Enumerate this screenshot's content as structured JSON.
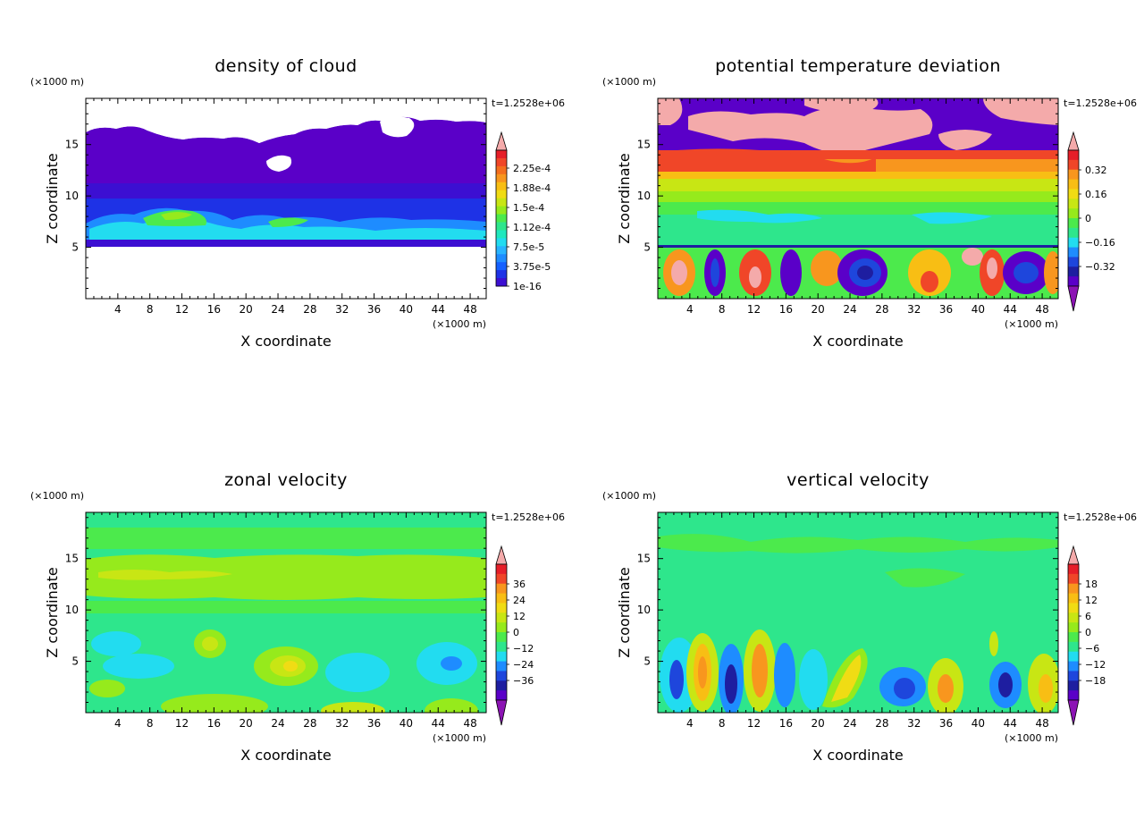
{
  "chart_data": [
    {
      "type": "heatmap",
      "title": "density of cloud",
      "xlabel": "X coordinate",
      "ylabel": "Z coordinate",
      "x_unit": "(×1000 m)",
      "y_unit": "(×1000 m)",
      "time_label": "t=1.2528e+06",
      "xlim": [
        0,
        50
      ],
      "ylim": [
        0,
        19.5
      ],
      "x_ticks": [
        "4",
        "8",
        "12",
        "16",
        "20",
        "24",
        "28",
        "32",
        "36",
        "40",
        "44",
        "48"
      ],
      "y_ticks": [
        "5",
        "10",
        "15"
      ],
      "colorbar": {
        "labels": [
          "2.25e-4",
          "1.88e-4",
          "1.5e-4",
          "1.12e-4",
          "7.5e-5",
          "3.75e-5",
          "1e-16"
        ],
        "colors": [
          "#5a00c8",
          "#3c0fd2",
          "#1e32e6",
          "#1460ff",
          "#1e8cff",
          "#28b4ff",
          "#22dcf0",
          "#20e8be",
          "#2ee68c",
          "#4cea4c",
          "#96ea1c",
          "#c8e614",
          "#f0dc14",
          "#f8be14",
          "#f8961e",
          "#f46e1e",
          "#f04628",
          "#e61e28",
          "#f4aaaa"
        ]
      }
    },
    {
      "type": "heatmap",
      "title": "potential temperature deviation",
      "xlabel": "X coordinate",
      "ylabel": "Z coordinate",
      "x_unit": "(×1000 m)",
      "y_unit": "(×1000 m)",
      "time_label": "t=1.2528e+06",
      "xlim": [
        0,
        50
      ],
      "ylim": [
        0,
        19.5
      ],
      "x_ticks": [
        "4",
        "8",
        "12",
        "16",
        "20",
        "24",
        "28",
        "32",
        "36",
        "40",
        "44",
        "48"
      ],
      "y_ticks": [
        "5",
        "10",
        "15"
      ],
      "colorbar": {
        "labels": [
          "0.32",
          "0.16",
          "0",
          "−0.16",
          "−0.32"
        ],
        "colors": [
          "#8c14b4",
          "#5a00c8",
          "#1e1ea0",
          "#1e46dc",
          "#1e8cff",
          "#22dcf0",
          "#2ee68c",
          "#4cea4c",
          "#96ea1c",
          "#c8e614",
          "#f0dc14",
          "#f8be14",
          "#f8961e",
          "#f04628",
          "#e61e28",
          "#f4aaaa"
        ]
      }
    },
    {
      "type": "heatmap",
      "title": "zonal velocity",
      "xlabel": "X coordinate",
      "ylabel": "Z coordinate",
      "x_unit": "(×1000 m)",
      "y_unit": "(×1000 m)",
      "time_label": "t=1.2528e+06",
      "xlim": [
        0,
        50
      ],
      "ylim": [
        0,
        19.5
      ],
      "x_ticks": [
        "4",
        "8",
        "12",
        "16",
        "20",
        "24",
        "28",
        "32",
        "36",
        "40",
        "44",
        "48"
      ],
      "y_ticks": [
        "5",
        "10",
        "15"
      ],
      "colorbar": {
        "labels": [
          "36",
          "24",
          "12",
          "0",
          "−12",
          "−24",
          "−36"
        ],
        "colors": [
          "#8c14b4",
          "#5a00c8",
          "#1e1ea0",
          "#1e46dc",
          "#1e8cff",
          "#22dcf0",
          "#2ee68c",
          "#4cea4c",
          "#96ea1c",
          "#c8e614",
          "#f0dc14",
          "#f8be14",
          "#f8961e",
          "#f04628",
          "#e61e28",
          "#f4aaaa"
        ]
      }
    },
    {
      "type": "heatmap",
      "title": "vertical velocity",
      "xlabel": "X coordinate",
      "ylabel": "Z coordinate",
      "x_unit": "(×1000 m)",
      "y_unit": "(×1000 m)",
      "time_label": "t=1.2528e+06",
      "xlim": [
        0,
        50
      ],
      "ylim": [
        0,
        19.5
      ],
      "x_ticks": [
        "4",
        "8",
        "12",
        "16",
        "20",
        "24",
        "28",
        "32",
        "36",
        "40",
        "44",
        "48"
      ],
      "y_ticks": [
        "5",
        "10",
        "15"
      ],
      "colorbar": {
        "labels": [
          "18",
          "12",
          "6",
          "0",
          "−6",
          "−12",
          "−18"
        ],
        "colors": [
          "#8c14b4",
          "#5a00c8",
          "#1e1ea0",
          "#1e46dc",
          "#1e8cff",
          "#22dcf0",
          "#2ee68c",
          "#4cea4c",
          "#96ea1c",
          "#c8e614",
          "#f0dc14",
          "#f8be14",
          "#f8961e",
          "#f04628",
          "#e61e28",
          "#f4aaaa"
        ]
      }
    }
  ]
}
